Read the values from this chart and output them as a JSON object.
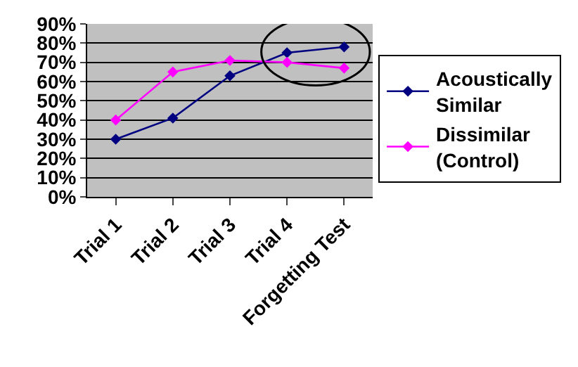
{
  "chart_data": {
    "type": "line",
    "categories": [
      "Trial 1",
      "Trial 2",
      "Trial 3",
      "Trial 4",
      "Forgetting Test"
    ],
    "series": [
      {
        "name": "Acoustically Similar",
        "color": "#000080",
        "values": [
          30,
          41,
          63,
          75,
          78
        ]
      },
      {
        "name": "Dissimilar (Control)",
        "color": "#ff00ff",
        "values": [
          40,
          65,
          71,
          70,
          67
        ]
      }
    ],
    "ylim": [
      0,
      90
    ],
    "yticks": [
      {
        "value": 0,
        "label": "0%"
      },
      {
        "value": 10,
        "label": "10%"
      },
      {
        "value": 20,
        "label": "20%"
      },
      {
        "value": 30,
        "label": "30%"
      },
      {
        "value": 40,
        "label": "40%"
      },
      {
        "value": 50,
        "label": "50%"
      },
      {
        "value": 60,
        "label": "60%"
      },
      {
        "value": 70,
        "label": "70%"
      },
      {
        "value": 80,
        "label": "80%"
      },
      {
        "value": 90,
        "label": "90%"
      }
    ],
    "grid": "y",
    "legend": "right",
    "marker": "diamond",
    "line_style": "solid"
  }
}
